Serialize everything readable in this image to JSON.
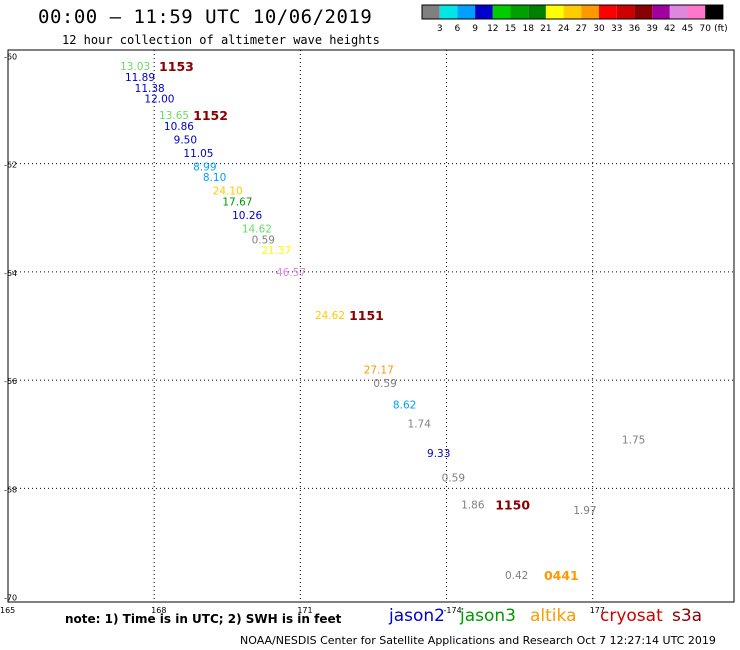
{
  "title": "00:00 – 11:59 UTC 10/06/2019",
  "subtitle": "12 hour collection of altimeter wave heights",
  "note": "note: 1) Time is in UTC; 2) SWH is in feet",
  "credit": "NOAA/NESDIS Center for Satellite Applications and Research    Oct  7 12:27:14 UTC 2019",
  "satellites": [
    {
      "name": "jason2",
      "color": "#0000cc"
    },
    {
      "name": "jason3",
      "color": "#009900"
    },
    {
      "name": "altika",
      "color": "#ff9900"
    },
    {
      "name": "cryosat",
      "color": "#cc0000"
    },
    {
      "name": "s3a",
      "color": "#880000"
    }
  ],
  "colorbar": {
    "unit": "(ft)",
    "colors": [
      "#808080",
      "#00e5e5",
      "#00a0ff",
      "#0000cc",
      "#00cc00",
      "#00a000",
      "#008000",
      "#ffff00",
      "#ffcc00",
      "#ff9900",
      "#ff0000",
      "#cc0000",
      "#880000",
      "#a000a0",
      "#dd88dd",
      "#ff77cc",
      "#000000"
    ],
    "labels": [
      "3",
      "6",
      "9",
      "12",
      "15",
      "18",
      "21",
      "24",
      "27",
      "30",
      "33",
      "36",
      "39",
      "42",
      "45",
      "70"
    ]
  },
  "chart_data": {
    "type": "scatter",
    "title": "00:00 – 11:59 UTC 10/06/2019",
    "subtitle": "12 hour collection of altimeter wave heights",
    "x_axis": {
      "ticks": [
        "165",
        "168",
        "171",
        "-174",
        "177"
      ]
    },
    "y_axis": {
      "ticks": [
        "-60",
        "-62",
        "-64",
        "-66",
        "-68",
        "-70"
      ]
    },
    "grid": true,
    "points": [
      {
        "text": "13.03",
        "lon": 167.3,
        "lat": -60.2,
        "color": "#66dd66"
      },
      {
        "text": "11.89",
        "lon": 167.4,
        "lat": -60.4,
        "color": "#0000cc"
      },
      {
        "text": "11.38",
        "lon": 167.6,
        "lat": -60.6,
        "color": "#0000cc"
      },
      {
        "text": "12.00",
        "lon": 167.8,
        "lat": -60.8,
        "color": "#0000cc"
      },
      {
        "text": "13.65",
        "lon": 168.1,
        "lat": -61.1,
        "color": "#66dd66"
      },
      {
        "text": "10.86",
        "lon": 168.2,
        "lat": -61.3,
        "color": "#0000cc"
      },
      {
        "text": "9.50",
        "lon": 168.4,
        "lat": -61.55,
        "color": "#0000cc"
      },
      {
        "text": "11.05",
        "lon": 168.6,
        "lat": -61.8,
        "color": "#0000cc"
      },
      {
        "text": "8.99",
        "lon": 168.8,
        "lat": -62.05,
        "color": "#00a0ff"
      },
      {
        "text": "8.10",
        "lon": 169.0,
        "lat": -62.25,
        "color": "#00a0ff"
      },
      {
        "text": "24.10",
        "lon": 169.2,
        "lat": -62.5,
        "color": "#ffcc00"
      },
      {
        "text": "17.67",
        "lon": 169.4,
        "lat": -62.7,
        "color": "#009900"
      },
      {
        "text": "10.26",
        "lon": 169.6,
        "lat": -62.95,
        "color": "#0000cc"
      },
      {
        "text": "14.62",
        "lon": 169.8,
        "lat": -63.2,
        "color": "#66dd66"
      },
      {
        "text": "0.59",
        "lon": 170.0,
        "lat": -63.4,
        "color": "#808080"
      },
      {
        "text": "21.37",
        "lon": 170.2,
        "lat": -63.6,
        "color": "#ffff00"
      },
      {
        "text": "46.57",
        "lon": 170.5,
        "lat": -64.0,
        "color": "#dd88dd"
      },
      {
        "text": "24.62",
        "lon": 171.3,
        "lat": -64.8,
        "color": "#ffcc00"
      },
      {
        "text": "27.17",
        "lon": 172.3,
        "lat": -65.8,
        "color": "#ff9900"
      },
      {
        "text": "0.59",
        "lon": 172.5,
        "lat": -66.05,
        "color": "#808080"
      },
      {
        "text": "8.62",
        "lon": 172.9,
        "lat": -66.45,
        "color": "#00a0ff"
      },
      {
        "text": "1.74",
        "lon": 173.2,
        "lat": -66.8,
        "color": "#808080"
      },
      {
        "text": "9.33",
        "lon": 173.6,
        "lat": -67.35,
        "color": "#0000cc"
      },
      {
        "text": "0.59",
        "lon": 173.9,
        "lat": -67.8,
        "color": "#808080"
      },
      {
        "text": "1.86",
        "lon": 174.3,
        "lat": -68.3,
        "color": "#808080"
      },
      {
        "text": "1.75",
        "lon": 177.6,
        "lat": -67.1,
        "color": "#808080"
      },
      {
        "text": "1.97",
        "lon": 176.6,
        "lat": -68.4,
        "color": "#808080"
      },
      {
        "text": "0.42",
        "lon": 175.2,
        "lat": -69.6,
        "color": "#808080"
      }
    ],
    "track_labels": [
      {
        "text": "1153",
        "lon": 168.1,
        "lat": -60.2,
        "color": "#880000"
      },
      {
        "text": "1152",
        "lon": 168.8,
        "lat": -61.1,
        "color": "#880000"
      },
      {
        "text": "1151",
        "lon": 172.0,
        "lat": -64.8,
        "color": "#880000"
      },
      {
        "text": "1150",
        "lon": 175.0,
        "lat": -68.3,
        "color": "#880000"
      },
      {
        "text": "0441",
        "lon": 176.0,
        "lat": -69.6,
        "color": "#ff9900"
      }
    ]
  }
}
